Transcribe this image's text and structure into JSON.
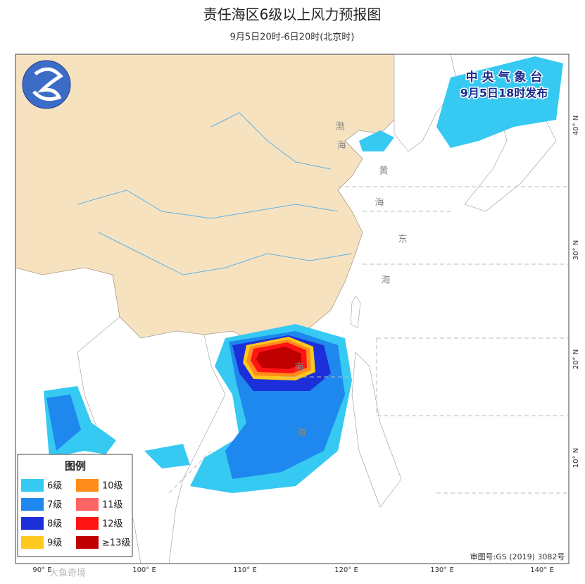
{
  "header": {
    "title": "责任海区6级以上风力预报图",
    "subtitle": "9月5日20时-6日20时(北京时)"
  },
  "issuer": {
    "name": "中 央 气 象 台",
    "time": "9月5日18时发布"
  },
  "legend": {
    "title": "图例",
    "items": [
      {
        "label": "6级",
        "color": "#36c9f2"
      },
      {
        "label": "7级",
        "color": "#1e88ee"
      },
      {
        "label": "8级",
        "color": "#1c2fd8"
      },
      {
        "label": "9级",
        "color": "#ffc81e"
      },
      {
        "label": "10级",
        "color": "#ff8c1a"
      },
      {
        "label": "11级",
        "color": "#ff6464"
      },
      {
        "label": "12级",
        "color": "#ff1414"
      },
      {
        "label": "≥13级",
        "color": "#c00000"
      }
    ]
  },
  "sea_labels": [
    "渤",
    "海",
    "黄",
    "海",
    "东",
    "海",
    "南",
    "海"
  ],
  "longitude_labels": [
    "90° E",
    "100° E",
    "110° E",
    "120° E",
    "130° E",
    "140° E"
  ],
  "latitude_labels": [
    "40° N",
    "30° N",
    "20° N",
    "10° N"
  ],
  "approval": "审图号:GS (2019) 3082号",
  "watermark": "大鱼奇境"
}
